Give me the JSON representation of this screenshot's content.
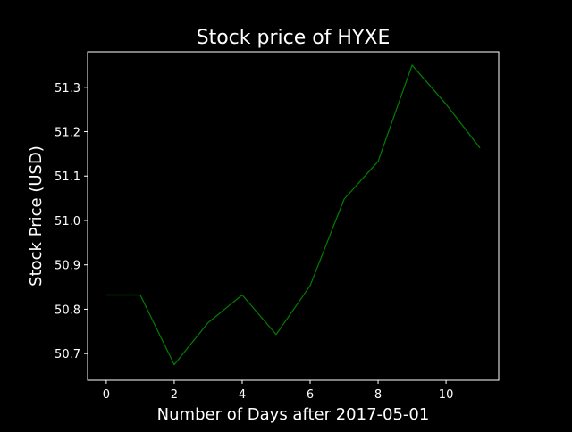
{
  "chart_data": {
    "type": "line",
    "title": "Stock price of HYXE",
    "xlabel": "Number of Days after 2017-05-01",
    "ylabel": "Stock Price (USD)",
    "xlim": [
      -0.55,
      11.55
    ],
    "ylim": [
      50.64,
      51.38
    ],
    "xticks": [
      0,
      2,
      4,
      6,
      8,
      10
    ],
    "xtick_labels": [
      "0",
      "2",
      "4",
      "6",
      "8",
      "10"
    ],
    "yticks": [
      50.7,
      50.8,
      50.9,
      51.0,
      51.1,
      51.2,
      51.3
    ],
    "ytick_labels": [
      "50.7",
      "50.8",
      "50.9",
      "51.0",
      "51.1",
      "51.2",
      "51.3"
    ],
    "grid": false,
    "series": [
      {
        "x": [
          0,
          1,
          2,
          3,
          4,
          5,
          6,
          7,
          8,
          9,
          10,
          11
        ],
        "values": [
          50.832,
          50.832,
          50.675,
          50.77,
          50.832,
          50.743,
          50.853,
          51.048,
          51.133,
          51.35,
          51.262,
          51.163
        ],
        "color": "#008000"
      }
    ]
  },
  "colors": {
    "background": "#000000",
    "foreground": "#ffffff",
    "line": "#008000"
  }
}
